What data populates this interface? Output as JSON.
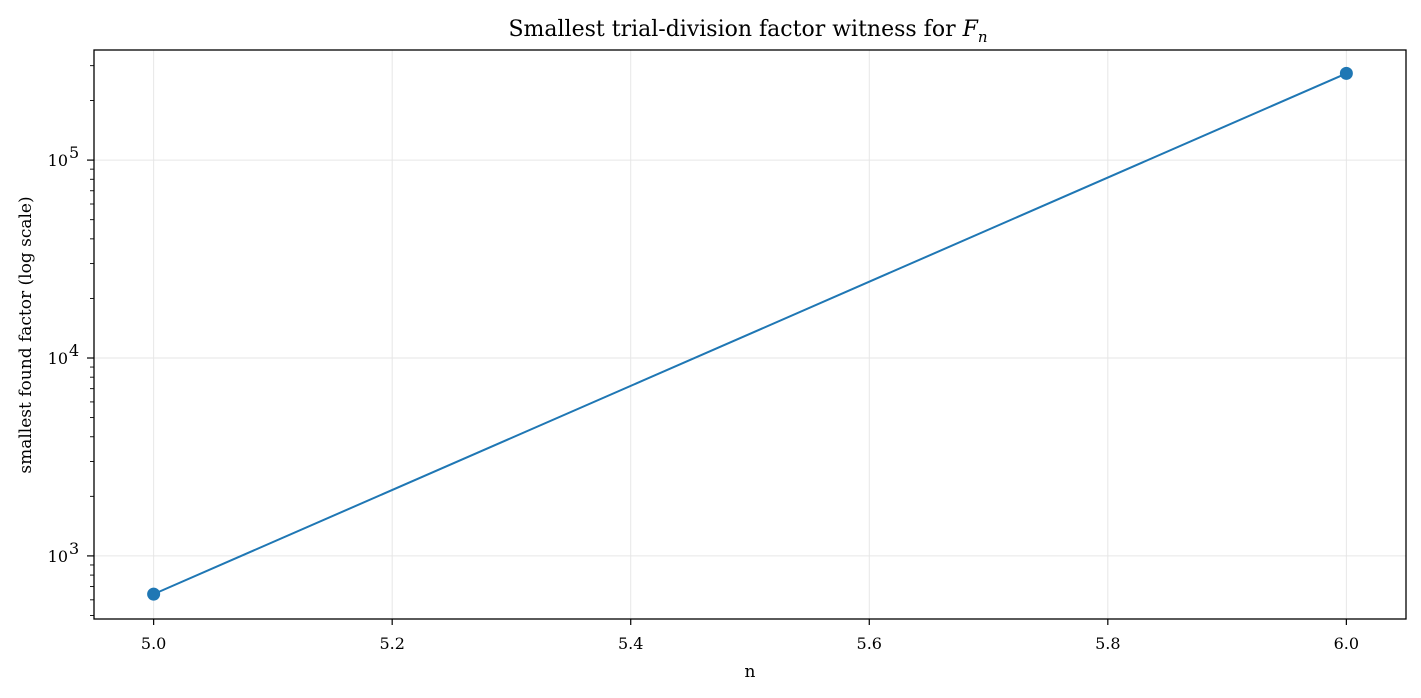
{
  "chart_data": {
    "type": "line",
    "title": {
      "prefix": "Smallest trial-division factor witness for ",
      "math_main": "F",
      "math_sub": "n"
    },
    "xlabel": "n",
    "ylabel": "smallest found factor (log scale)",
    "x": [
      5.0,
      6.0
    ],
    "series": [
      {
        "values": [
          641,
          274177
        ],
        "color": "#1f77b4",
        "marker": "circle"
      }
    ],
    "xlim": [
      4.95,
      6.05
    ],
    "ylim": [
      480,
      360000
    ],
    "yscale": "log",
    "x_ticks": [
      {
        "value": 5.0,
        "label": "5.0"
      },
      {
        "value": 5.2,
        "label": "5.2"
      },
      {
        "value": 5.4,
        "label": "5.4"
      },
      {
        "value": 5.6,
        "label": "5.6"
      },
      {
        "value": 5.8,
        "label": "5.8"
      },
      {
        "value": 6.0,
        "label": "6.0"
      }
    ],
    "y_ticks": [
      {
        "value": 1000,
        "base": "10",
        "exp": "3"
      },
      {
        "value": 10000,
        "base": "10",
        "exp": "4"
      },
      {
        "value": 100000,
        "base": "10",
        "exp": "5"
      }
    ],
    "grid": true,
    "legend": "none"
  }
}
